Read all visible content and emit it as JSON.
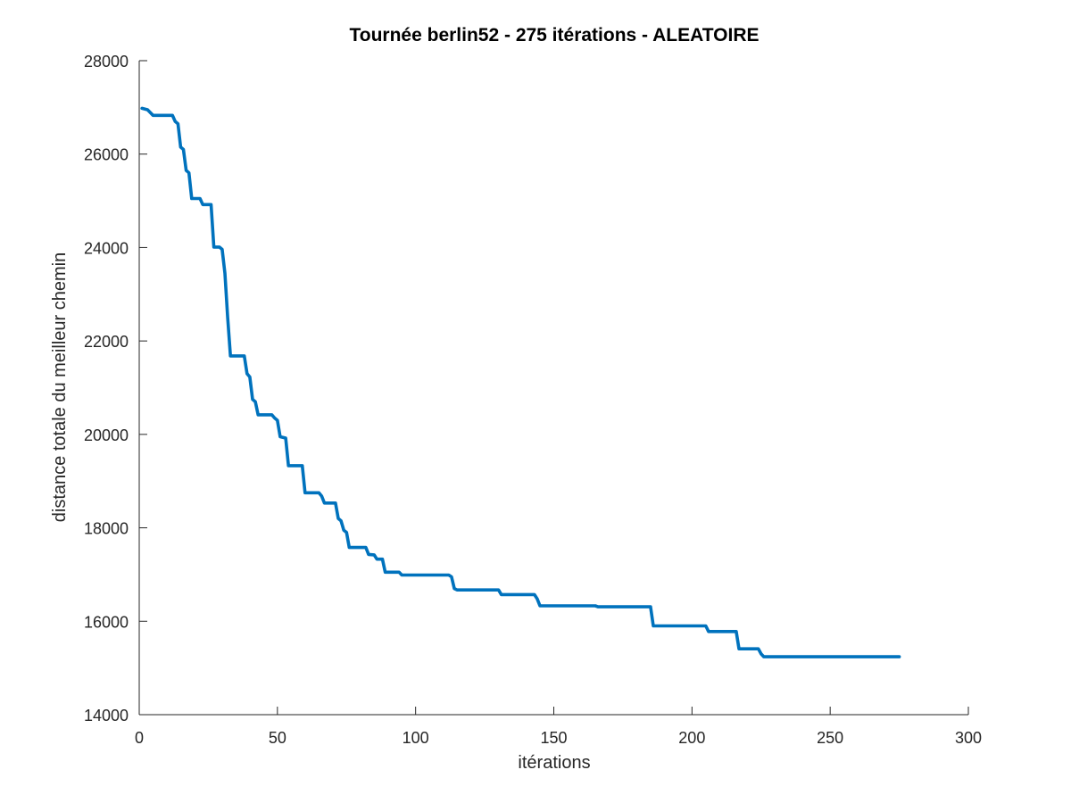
{
  "chart_data": {
    "type": "line",
    "title": "Tournée berlin52 - 275 itérations - ALEATOIRE",
    "xlabel": "itérations",
    "ylabel": "distance totale du meilleur chemin",
    "xlim": [
      0,
      300
    ],
    "ylim": [
      14000,
      28000
    ],
    "xticks": [
      0,
      50,
      100,
      150,
      200,
      250,
      300
    ],
    "yticks": [
      14000,
      16000,
      18000,
      20000,
      22000,
      24000,
      26000,
      28000
    ],
    "grid": false,
    "line_color": "#0072BD",
    "series": [
      {
        "points": [
          [
            1,
            26980
          ],
          [
            3,
            26950
          ],
          [
            5,
            26830
          ],
          [
            12,
            26830
          ],
          [
            13,
            26700
          ],
          [
            14,
            26650
          ],
          [
            15,
            26150
          ],
          [
            16,
            26100
          ],
          [
            17,
            25650
          ],
          [
            18,
            25600
          ],
          [
            19,
            25050
          ],
          [
            22,
            25050
          ],
          [
            23,
            24920
          ],
          [
            26,
            24920
          ],
          [
            27,
            24010
          ],
          [
            29,
            24010
          ],
          [
            30,
            23960
          ],
          [
            31,
            23450
          ],
          [
            32,
            22500
          ],
          [
            33,
            21680
          ],
          [
            38,
            21680
          ],
          [
            39,
            21300
          ],
          [
            40,
            21230
          ],
          [
            41,
            20750
          ],
          [
            42,
            20700
          ],
          [
            43,
            20420
          ],
          [
            48,
            20420
          ],
          [
            49,
            20350
          ],
          [
            50,
            20300
          ],
          [
            51,
            19950
          ],
          [
            53,
            19920
          ],
          [
            54,
            19330
          ],
          [
            59,
            19330
          ],
          [
            60,
            18750
          ],
          [
            65,
            18750
          ],
          [
            66,
            18680
          ],
          [
            67,
            18530
          ],
          [
            71,
            18530
          ],
          [
            72,
            18200
          ],
          [
            73,
            18150
          ],
          [
            74,
            17950
          ],
          [
            75,
            17900
          ],
          [
            76,
            17580
          ],
          [
            82,
            17580
          ],
          [
            83,
            17430
          ],
          [
            85,
            17420
          ],
          [
            86,
            17330
          ],
          [
            88,
            17330
          ],
          [
            89,
            17050
          ],
          [
            94,
            17050
          ],
          [
            95,
            16990
          ],
          [
            112,
            16990
          ],
          [
            113,
            16950
          ],
          [
            114,
            16700
          ],
          [
            115,
            16670
          ],
          [
            130,
            16670
          ],
          [
            131,
            16570
          ],
          [
            143,
            16570
          ],
          [
            144,
            16480
          ],
          [
            145,
            16330
          ],
          [
            165,
            16330
          ],
          [
            166,
            16310
          ],
          [
            185,
            16310
          ],
          [
            186,
            15900
          ],
          [
            205,
            15900
          ],
          [
            206,
            15780
          ],
          [
            216,
            15780
          ],
          [
            217,
            15410
          ],
          [
            224,
            15410
          ],
          [
            225,
            15300
          ],
          [
            226,
            15240
          ],
          [
            275,
            15240
          ]
        ]
      }
    ]
  }
}
